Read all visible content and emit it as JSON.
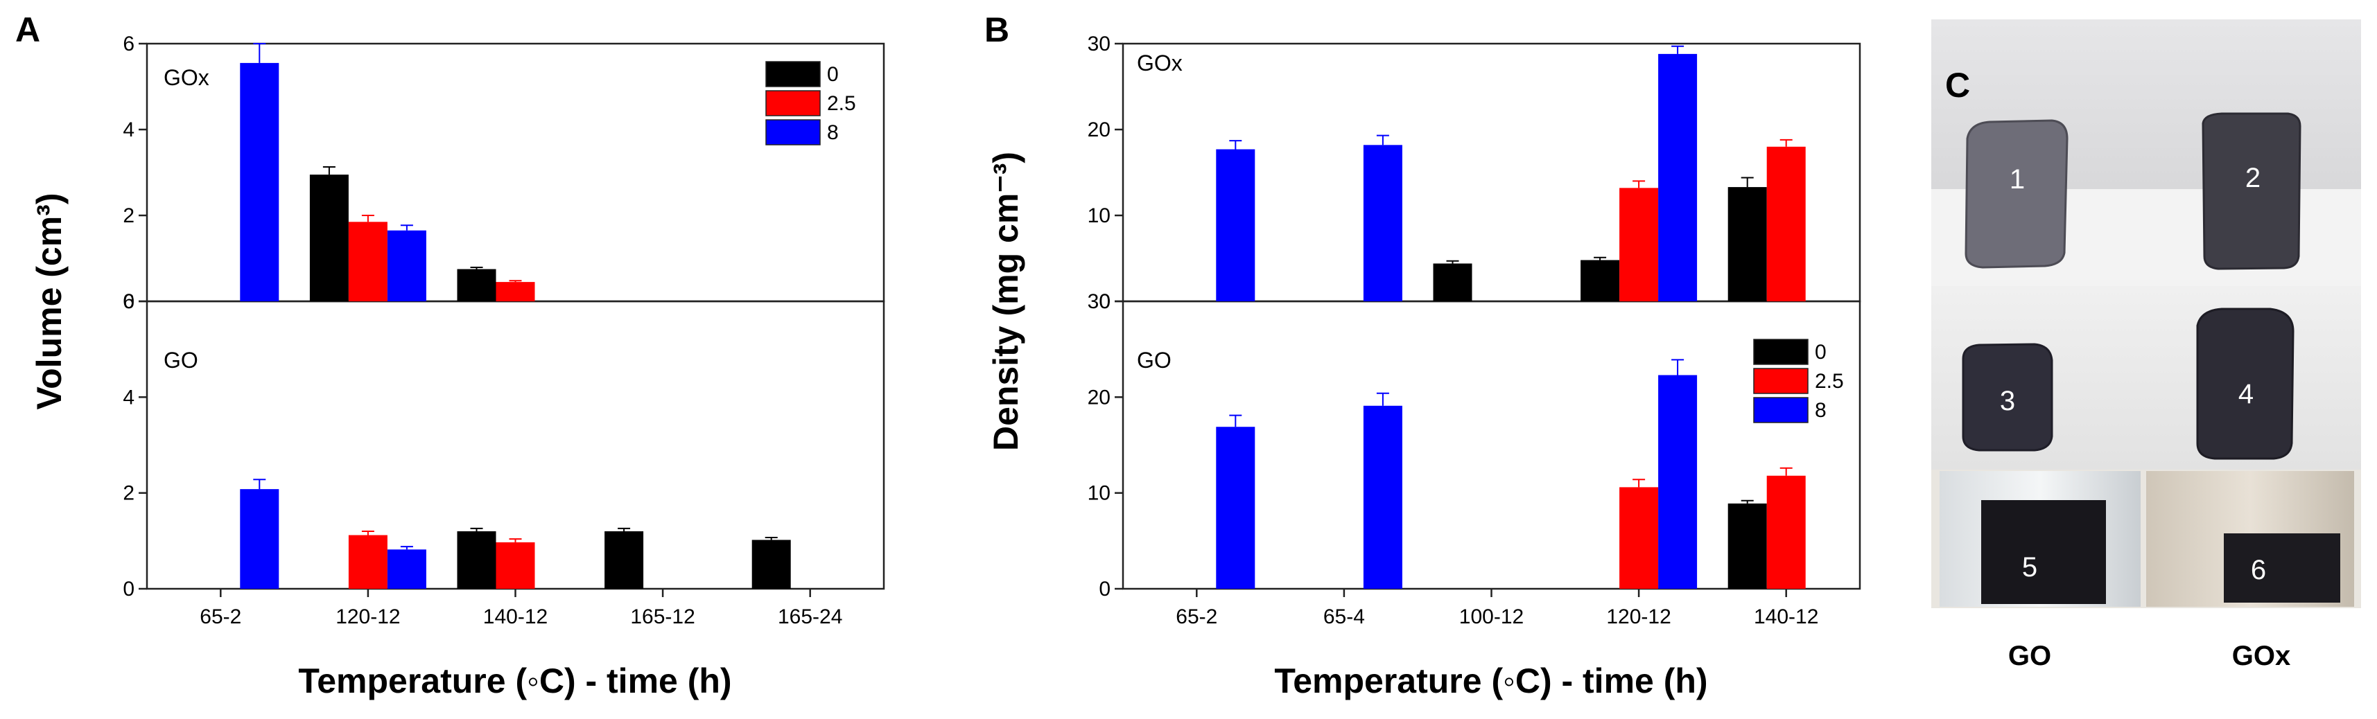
{
  "chart_data": [
    {
      "panel": "A",
      "type": "bar",
      "ylabel": "Volume (cm³)",
      "xlabel": "Temperature (◦C) - time (h)",
      "categories": [
        "65-2",
        "120-12",
        "140-12",
        "165-12",
        "165-24"
      ],
      "legend": {
        "placement": "top-right of upper subplot",
        "entries": [
          "0",
          "2.5",
          "8"
        ]
      },
      "subplots": [
        {
          "name": "GOx",
          "ylim": [
            0,
            6
          ],
          "yticks": [
            0,
            2,
            4,
            6
          ],
          "series": [
            {
              "name": "0",
              "values": [
                null,
                2.95,
                0.75,
                null,
                null
              ],
              "errors": [
                0,
                0.18,
                0.04,
                0,
                0
              ]
            },
            {
              "name": "2.5",
              "values": [
                null,
                1.85,
                0.45,
                null,
                null
              ],
              "errors": [
                0,
                0.15,
                0.03,
                0,
                0
              ]
            },
            {
              "name": "8",
              "values": [
                5.55,
                1.65,
                null,
                null,
                null
              ],
              "errors": [
                0,
                0.12,
                0,
                0,
                0
              ],
              "errors_top": [
                0.45,
                0,
                0,
                0,
                0
              ]
            }
          ]
        },
        {
          "name": "GO",
          "ylim": [
            0,
            6
          ],
          "yticks": [
            0,
            2,
            4,
            6
          ],
          "series": [
            {
              "name": "0",
              "values": [
                null,
                null,
                1.2,
                1.2,
                1.02
              ],
              "errors": [
                0,
                0,
                0.06,
                0.06,
                0.05
              ]
            },
            {
              "name": "2.5",
              "values": [
                null,
                1.12,
                0.97,
                null,
                null
              ],
              "errors": [
                0,
                0.08,
                0.07,
                0,
                0
              ]
            },
            {
              "name": "8",
              "values": [
                2.08,
                0.82,
                null,
                null,
                null
              ],
              "errors": [
                0.2,
                0.06,
                0,
                0,
                0
              ]
            }
          ]
        }
      ]
    },
    {
      "panel": "B",
      "type": "bar",
      "ylabel": "Density (mg cm⁻³)",
      "xlabel": "Temperature (◦C) - time (h)",
      "categories": [
        "65-2",
        "65-4",
        "100-12",
        "120-12",
        "140-12"
      ],
      "legend": {
        "placement": "top-right of lower subplot",
        "entries": [
          "0",
          "2.5",
          "8"
        ]
      },
      "subplots": [
        {
          "name": "GOx",
          "ylim": [
            0,
            30
          ],
          "yticks": [
            0,
            10,
            20,
            30
          ],
          "series": [
            {
              "name": "0",
              "values": [
                null,
                null,
                4.4,
                4.8,
                13.3
              ],
              "errors": [
                0,
                0,
                0.3,
                0.3,
                1.1
              ]
            },
            {
              "name": "2.5",
              "values": [
                null,
                null,
                null,
                13.2,
                18.0
              ],
              "errors": [
                0,
                0,
                0,
                0.8,
                0.8
              ]
            },
            {
              "name": "8",
              "values": [
                17.7,
                18.2,
                null,
                28.8,
                null
              ],
              "errors": [
                1.0,
                1.1,
                0,
                0.9,
                0
              ]
            }
          ]
        },
        {
          "name": "GO",
          "ylim": [
            0,
            30
          ],
          "yticks": [
            0,
            10,
            20,
            30
          ],
          "series": [
            {
              "name": "0",
              "values": [
                null,
                null,
                null,
                null,
                8.9
              ],
              "errors": [
                0,
                0,
                0,
                0,
                0.3
              ]
            },
            {
              "name": "2.5",
              "values": [
                null,
                null,
                null,
                10.6,
                11.8
              ],
              "errors": [
                0,
                0,
                0,
                0.8,
                0.8
              ]
            },
            {
              "name": "8",
              "values": [
                16.9,
                19.1,
                null,
                22.3,
                null
              ],
              "errors": [
                1.2,
                1.3,
                0,
                1.6,
                0
              ]
            }
          ]
        }
      ]
    }
  ],
  "series_colors": {
    "0": "#000000",
    "2.5": "#ff0000",
    "8": "#0000ff"
  },
  "photo": {
    "panel_letter": "C",
    "sample_numbers": [
      "1",
      "2",
      "3",
      "4",
      "5",
      "6"
    ],
    "captions": [
      "GO",
      "GOx"
    ]
  }
}
